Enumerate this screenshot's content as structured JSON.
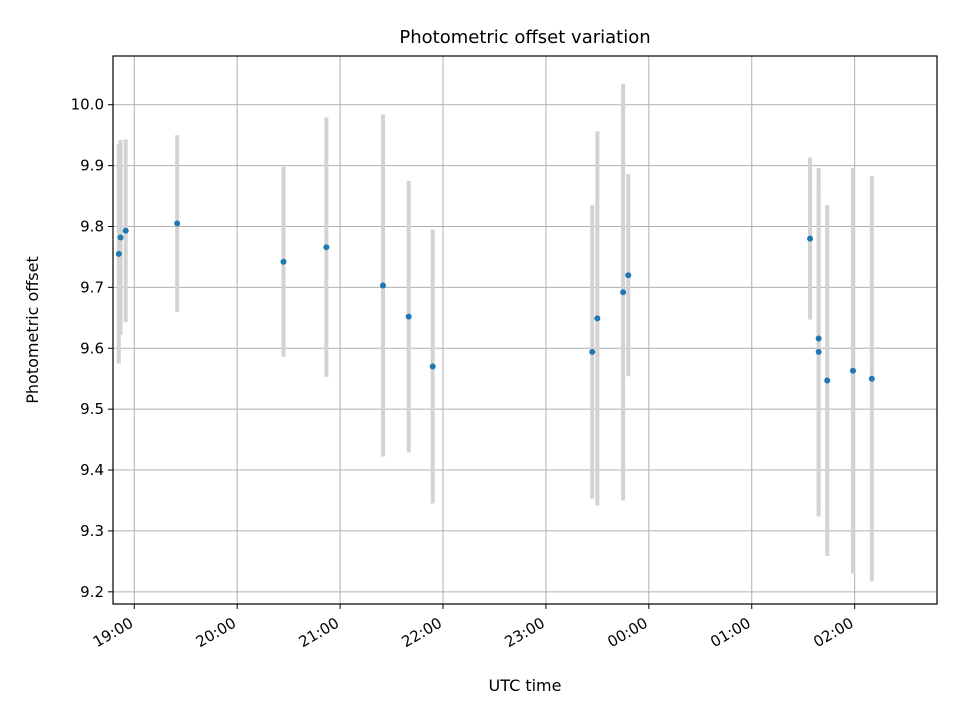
{
  "chart_data": {
    "type": "scatter",
    "title": "Photometric offset variation",
    "xlabel": "UTC time",
    "ylabel": "Photometric offset",
    "x_axis_type": "time",
    "x_ticks": [
      "19:00",
      "20:00",
      "21:00",
      "22:00",
      "23:00",
      "00:00",
      "01:00",
      "02:00"
    ],
    "y_ticks": [
      "9.2",
      "9.3",
      "9.4",
      "9.5",
      "9.6",
      "9.7",
      "9.8",
      "9.9",
      "10.0"
    ],
    "ylim": [
      9.18,
      10.08
    ],
    "grid": true,
    "colors": {
      "point": "#1f77b4",
      "errorbar": "#d3d3d3"
    },
    "points": [
      {
        "time": "18:51",
        "y": 9.755,
        "err": 0.18
      },
      {
        "time": "18:52",
        "y": 9.782,
        "err": 0.16
      },
      {
        "time": "18:55",
        "y": 9.793,
        "err": 0.15
      },
      {
        "time": "19:25",
        "y": 9.805,
        "err": 0.145
      },
      {
        "time": "20:27",
        "y": 9.742,
        "err": 0.156
      },
      {
        "time": "20:52",
        "y": 9.766,
        "err": 0.213
      },
      {
        "time": "21:25",
        "y": 9.703,
        "err": 0.281
      },
      {
        "time": "21:40",
        "y": 9.652,
        "err": 0.223
      },
      {
        "time": "21:54",
        "y": 9.57,
        "err": 0.225
      },
      {
        "time": "23:27",
        "y": 9.594,
        "err": 0.241
      },
      {
        "time": "23:30",
        "y": 9.649,
        "err": 0.307
      },
      {
        "time": "23:45",
        "y": 9.692,
        "err": 0.342
      },
      {
        "time": "23:48",
        "y": 9.72,
        "err": 0.166
      },
      {
        "time": "01:34",
        "y": 9.78,
        "err": 0.133
      },
      {
        "time": "01:39",
        "y": 9.616,
        "err": 0.28
      },
      {
        "time": "01:39",
        "y": 9.594,
        "err": 0.27
      },
      {
        "time": "01:44",
        "y": 9.547,
        "err": 0.288
      },
      {
        "time": "01:59",
        "y": 9.563,
        "err": 0.333
      },
      {
        "time": "02:10",
        "y": 9.55,
        "err": 0.333
      }
    ]
  }
}
